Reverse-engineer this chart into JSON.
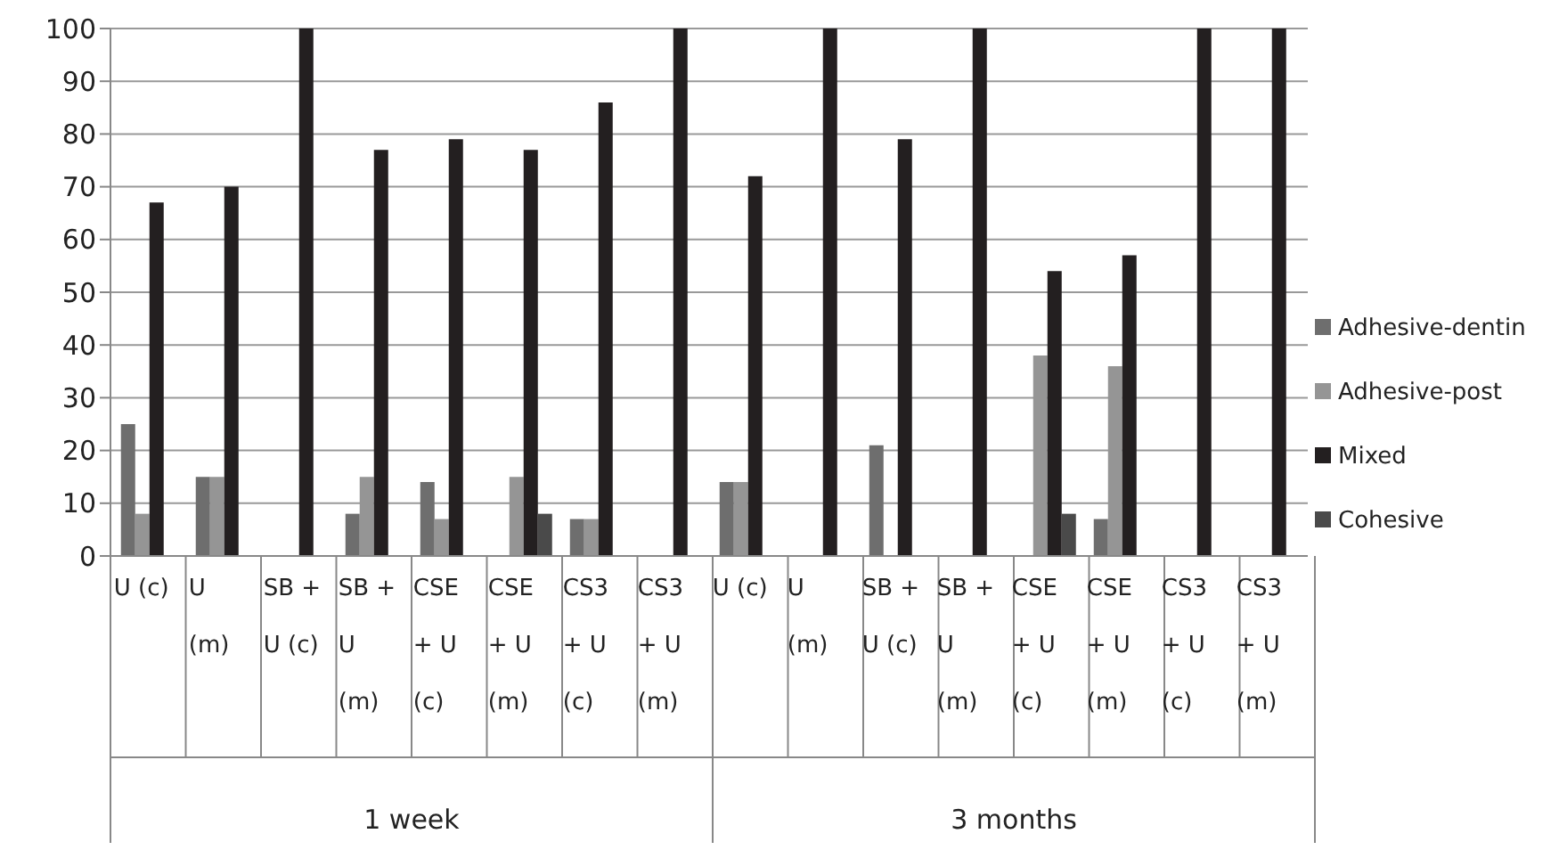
{
  "chart_data": {
    "type": "bar",
    "categories": [
      "U (c)",
      "U (m)",
      "SB + U (c)",
      "SB + U (m)",
      "CSE + U (c)",
      "CSE + U (m)",
      "CS3 + U (c)",
      "CS3 + U (m)",
      "U (c)",
      "U (m)",
      "SB + U (c)",
      "SB + U (m)",
      "CSE + U (c)",
      "CSE + U (m)",
      "CS3 + U (c)",
      "CS3 + U (m)"
    ],
    "series": [
      {
        "name": "Adhesive-dentin",
        "color": "#6e6e6e",
        "values": [
          25,
          15,
          0,
          8,
          14,
          0,
          7,
          0,
          14,
          0,
          21,
          0,
          0,
          7,
          0,
          0
        ]
      },
      {
        "name": "Adhesive-post",
        "color": "#959595",
        "values": [
          8,
          15,
          0,
          15,
          7,
          15,
          7,
          0,
          14,
          0,
          0,
          0,
          38,
          36,
          0,
          0
        ]
      },
      {
        "name": "Mixed",
        "color": "#231f20",
        "values": [
          67,
          70,
          100,
          77,
          79,
          77,
          86,
          100,
          72,
          100,
          79,
          100,
          54,
          57,
          100,
          100
        ]
      },
      {
        "name": "Cohesive",
        "color": "#4a4a4a",
        "values": [
          0,
          0,
          0,
          0,
          0,
          8,
          0,
          0,
          0,
          0,
          0,
          0,
          8,
          0,
          0,
          0
        ]
      }
    ],
    "annotations": [
      "1 week",
      "3 months"
    ],
    "ylim": [
      0,
      100
    ],
    "yticks": [
      0,
      10,
      20,
      30,
      40,
      50,
      60,
      70,
      80,
      90,
      100
    ],
    "grid": "y",
    "legend": "right"
  }
}
